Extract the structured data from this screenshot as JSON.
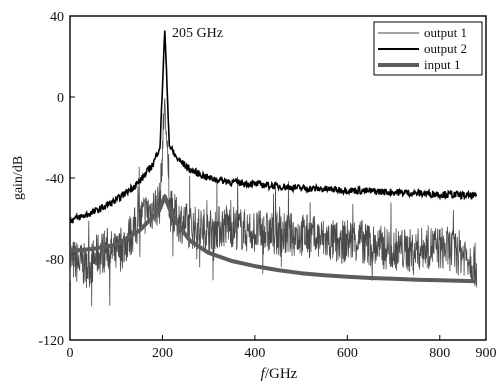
{
  "chart_data": {
    "type": "line",
    "xlabel_italic": "f",
    "xlabel_rest": "/GHz",
    "ylabel": "gain/dB",
    "xlim": [
      0,
      900
    ],
    "ylim": [
      -120,
      40
    ],
    "x_ticks": [
      0,
      200,
      400,
      600,
      800,
      900
    ],
    "y_ticks": [
      40,
      0,
      -40,
      -80,
      -120
    ],
    "grid": false,
    "legend_position": "top-right",
    "annotations": [
      {
        "text": "205 GHz",
        "x": 205,
        "y": 34
      }
    ],
    "series": [
      {
        "name": "output 1",
        "color": "#4a4a4a",
        "style": "thin noisy",
        "x": [
          0,
          20,
          40,
          60,
          80,
          100,
          120,
          140,
          160,
          180,
          195,
          205,
          215,
          230,
          260,
          300,
          340,
          380,
          420,
          460,
          500,
          540,
          580,
          620,
          660,
          700,
          740,
          780,
          820,
          860,
          880
        ],
        "y": [
          -80,
          -82,
          -84,
          -78,
          -75,
          -78,
          -72,
          -65,
          -58,
          -55,
          -52,
          0,
          -55,
          -60,
          -64,
          -66,
          -63,
          -66,
          -67,
          -68,
          -68,
          -70,
          -72,
          -70,
          -74,
          -75,
          -76,
          -74,
          -75,
          -78,
          -84
        ]
      },
      {
        "name": "output 2",
        "color": "#000000",
        "style": "medium",
        "x": [
          0,
          50,
          100,
          150,
          180,
          195,
          205,
          215,
          230,
          260,
          300,
          350,
          400,
          450,
          500,
          550,
          600,
          650,
          700,
          750,
          800,
          850,
          880
        ],
        "y": [
          -61,
          -57,
          -51,
          -42,
          -33,
          -24,
          34,
          -24,
          -30,
          -36,
          -40,
          -42,
          -43,
          -44,
          -45,
          -45.5,
          -46,
          -46.5,
          -47,
          -47.5,
          -48,
          -48.5,
          -49
        ]
      },
      {
        "name": "input 1",
        "color": "#5c5c5c",
        "style": "thick",
        "x": [
          0,
          50,
          100,
          150,
          180,
          195,
          205,
          215,
          230,
          260,
          300,
          350,
          400,
          450,
          500,
          550,
          600,
          650,
          700,
          750,
          800,
          850,
          880
        ],
        "y": [
          -76,
          -75,
          -73,
          -66,
          -59,
          -55,
          -49,
          -55,
          -62,
          -71,
          -77,
          -81,
          -83.5,
          -85.5,
          -87,
          -88,
          -88.8,
          -89.4,
          -89.8,
          -90.2,
          -90.5,
          -90.8,
          -91
        ]
      }
    ]
  }
}
